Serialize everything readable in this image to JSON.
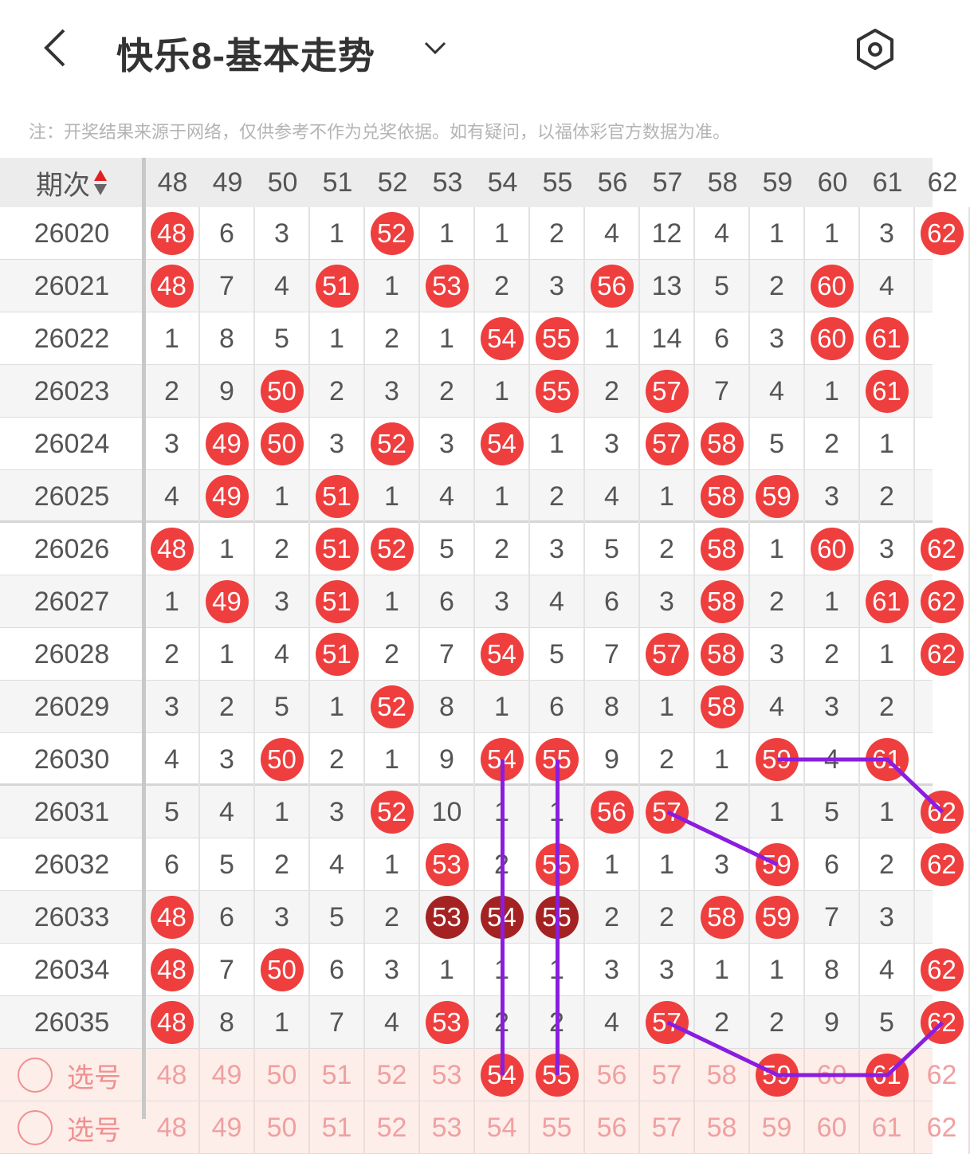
{
  "header": {
    "title": "快乐8-基本走势",
    "back_icon": "chevron-left-icon",
    "dropdown_icon": "chevron-down-icon",
    "settings_icon": "hexagon-settings-icon"
  },
  "note": "注：开奖结果来源于网络，仅供参考不作为兑奖依据。如有疑问，以福体彩官方数据为准。",
  "table": {
    "issue_header": "期次",
    "columns": [
      "48",
      "49",
      "50",
      "51",
      "52",
      "53",
      "54",
      "55",
      "56",
      "57",
      "58",
      "59",
      "60",
      "61",
      "62"
    ],
    "rows": [
      {
        "issue": "26020",
        "cells": [
          "48",
          "6",
          "3",
          "1",
          "52",
          "1",
          "1",
          "2",
          "4",
          "12",
          "4",
          "1",
          "1",
          "3",
          "62"
        ]
      },
      {
        "issue": "26021",
        "cells": [
          "48",
          "7",
          "4",
          "51",
          "1",
          "53",
          "2",
          "3",
          "56",
          "13",
          "5",
          "2",
          "60",
          "4",
          ""
        ]
      },
      {
        "issue": "26022",
        "cells": [
          "1",
          "8",
          "5",
          "1",
          "2",
          "1",
          "54",
          "55",
          "1",
          "14",
          "6",
          "3",
          "60",
          "61",
          ""
        ]
      },
      {
        "issue": "26023",
        "cells": [
          "2",
          "9",
          "50",
          "2",
          "3",
          "2",
          "1",
          "55",
          "2",
          "57",
          "7",
          "4",
          "1",
          "61",
          ""
        ]
      },
      {
        "issue": "26024",
        "cells": [
          "3",
          "49",
          "50",
          "3",
          "52",
          "3",
          "54",
          "1",
          "3",
          "57",
          "58",
          "5",
          "2",
          "1",
          ""
        ]
      },
      {
        "issue": "26025",
        "cells": [
          "4",
          "49",
          "1",
          "51",
          "1",
          "4",
          "1",
          "2",
          "4",
          "1",
          "58",
          "59",
          "3",
          "2",
          ""
        ]
      },
      {
        "issue": "26026",
        "cells": [
          "48",
          "1",
          "2",
          "51",
          "52",
          "5",
          "2",
          "3",
          "5",
          "2",
          "58",
          "1",
          "60",
          "3",
          "62"
        ]
      },
      {
        "issue": "26027",
        "cells": [
          "1",
          "49",
          "3",
          "51",
          "1",
          "6",
          "3",
          "4",
          "6",
          "3",
          "58",
          "2",
          "1",
          "61",
          "62"
        ]
      },
      {
        "issue": "26028",
        "cells": [
          "2",
          "1",
          "4",
          "51",
          "2",
          "7",
          "54",
          "5",
          "7",
          "57",
          "58",
          "3",
          "2",
          "1",
          "62"
        ]
      },
      {
        "issue": "26029",
        "cells": [
          "3",
          "2",
          "5",
          "1",
          "52",
          "8",
          "1",
          "6",
          "8",
          "1",
          "58",
          "4",
          "3",
          "2",
          ""
        ]
      },
      {
        "issue": "26030",
        "cells": [
          "4",
          "3",
          "50",
          "2",
          "1",
          "9",
          "54",
          "55",
          "9",
          "2",
          "1",
          "59",
          "4",
          "61",
          ""
        ]
      },
      {
        "issue": "26031",
        "cells": [
          "5",
          "4",
          "1",
          "3",
          "52",
          "10",
          "1",
          "1",
          "56",
          "57",
          "2",
          "1",
          "5",
          "1",
          "62"
        ]
      },
      {
        "issue": "26032",
        "cells": [
          "6",
          "5",
          "2",
          "4",
          "1",
          "53",
          "2",
          "55",
          "1",
          "1",
          "3",
          "59",
          "6",
          "2",
          "62"
        ]
      },
      {
        "issue": "26033",
        "cells": [
          "48",
          "6",
          "3",
          "5",
          "2",
          "53",
          "54",
          "55",
          "2",
          "2",
          "58",
          "59",
          "7",
          "3",
          ""
        ],
        "dark": [
          "53",
          "54",
          "55"
        ]
      },
      {
        "issue": "26034",
        "cells": [
          "48",
          "7",
          "50",
          "6",
          "3",
          "1",
          "1",
          "1",
          "3",
          "3",
          "1",
          "1",
          "8",
          "4",
          "62"
        ]
      },
      {
        "issue": "26035",
        "cells": [
          "48",
          "8",
          "1",
          "7",
          "4",
          "53",
          "2",
          "2",
          "4",
          "57",
          "2",
          "2",
          "9",
          "5",
          "62"
        ]
      }
    ],
    "select_rows": [
      {
        "label": "选号",
        "selected": [
          "54",
          "55",
          "59",
          "61"
        ]
      },
      {
        "label": "选号",
        "selected": []
      }
    ],
    "colors": {
      "ball": "#ee3e3e",
      "ball_dark": "#a42222",
      "line": "#8a1de0"
    },
    "lines": [
      [
        [
          "26030",
          "59"
        ],
        [
          "26030",
          "61"
        ],
        [
          "26031",
          "62"
        ]
      ],
      [
        [
          "26031",
          "57"
        ],
        [
          "26032",
          "59"
        ]
      ],
      [
        [
          "26030",
          "54"
        ],
        [
          "select",
          "54"
        ]
      ],
      [
        [
          "26030",
          "55"
        ],
        [
          "select",
          "55"
        ]
      ],
      [
        [
          "26035",
          "57"
        ],
        [
          "select",
          "59"
        ],
        [
          "select",
          "61"
        ],
        [
          "26035",
          "62"
        ]
      ]
    ]
  }
}
